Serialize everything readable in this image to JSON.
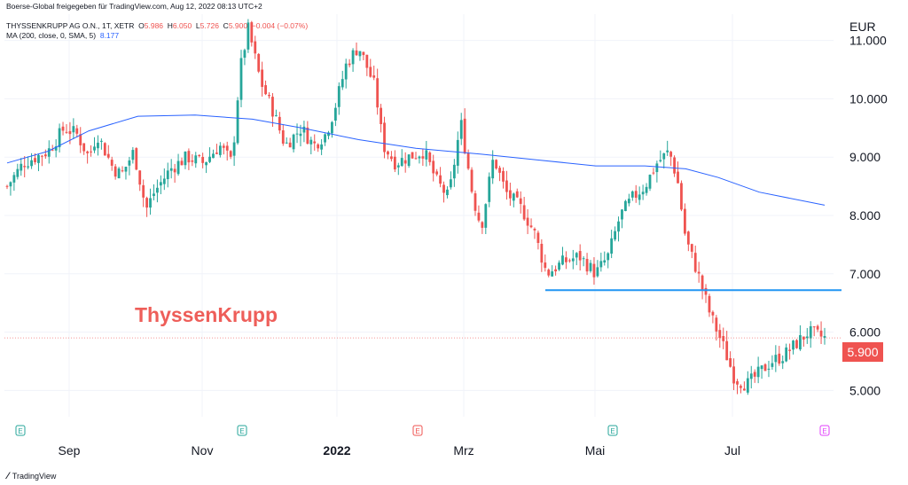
{
  "header": {
    "source": "Boerse-Global freigegeben für TradingView.com, Aug 12, 2022 08:13 UTC+2",
    "symbol": "THYSSENKRUPP AG O.N., 1T, XETR",
    "o_label": "O",
    "o_value": "5.986",
    "h_label": "H",
    "h_value": "6.050",
    "l_label": "L",
    "l_value": "5.726",
    "c_label": "C",
    "c_value": "5.900",
    "change": "−0.004 (−0.07%)",
    "indicator_label": "MA (200, close, 0, SMA, 5)",
    "indicator_value": "8.177"
  },
  "currency": "EUR",
  "watermark": "ThyssenKrupp",
  "last_price_label": "5.900",
  "footer_logo": "TradingView",
  "colors": {
    "up": "#26a69a",
    "down": "#ef5350",
    "ma": "#2962ff",
    "support": "#2196f3",
    "grid": "#f0f3fa"
  },
  "chart_data": {
    "type": "candlestick",
    "x_ticks": [
      "Sep",
      "Nov",
      "2022",
      "Mrz",
      "Mai",
      "Jul"
    ],
    "y_ticks": [
      "11.000",
      "10.000",
      "9.000",
      "8.000",
      "7.000",
      "6.000",
      "5.000"
    ],
    "y_tick_values": [
      11,
      10,
      9,
      8,
      7,
      6,
      5
    ],
    "ylim": [
      4.55,
      11.45
    ],
    "last_price": 5.9,
    "ohlc_series": [
      {
        "x": 0.0,
        "y": 8.5
      },
      {
        "x": 0.02,
        "y": 8.9
      },
      {
        "x": 0.05,
        "y": 9.1
      },
      {
        "x": 0.07,
        "y": 9.5
      },
      {
        "x": 0.085,
        "y": 9.4
      },
      {
        "x": 0.1,
        "y": 9.0
      },
      {
        "x": 0.11,
        "y": 9.4
      },
      {
        "x": 0.13,
        "y": 8.8
      },
      {
        "x": 0.14,
        "y": 8.7
      },
      {
        "x": 0.155,
        "y": 9.1
      },
      {
        "x": 0.17,
        "y": 8.1
      },
      {
        "x": 0.18,
        "y": 8.4
      },
      {
        "x": 0.2,
        "y": 8.8
      },
      {
        "x": 0.22,
        "y": 9.0
      },
      {
        "x": 0.24,
        "y": 8.9
      },
      {
        "x": 0.26,
        "y": 9.2
      },
      {
        "x": 0.275,
        "y": 8.9
      },
      {
        "x": 0.285,
        "y": 10.5
      },
      {
        "x": 0.295,
        "y": 11.2
      },
      {
        "x": 0.31,
        "y": 10.3
      },
      {
        "x": 0.325,
        "y": 9.8
      },
      {
        "x": 0.34,
        "y": 9.2
      },
      {
        "x": 0.36,
        "y": 9.5
      },
      {
        "x": 0.375,
        "y": 9.2
      },
      {
        "x": 0.39,
        "y": 9.4
      },
      {
        "x": 0.4,
        "y": 9.8
      },
      {
        "x": 0.415,
        "y": 10.6
      },
      {
        "x": 0.43,
        "y": 10.9
      },
      {
        "x": 0.45,
        "y": 10.2
      },
      {
        "x": 0.46,
        "y": 9.2
      },
      {
        "x": 0.475,
        "y": 8.9
      },
      {
        "x": 0.49,
        "y": 9.0
      },
      {
        "x": 0.51,
        "y": 9.1
      },
      {
        "x": 0.525,
        "y": 8.6
      },
      {
        "x": 0.54,
        "y": 8.3
      },
      {
        "x": 0.555,
        "y": 9.6
      },
      {
        "x": 0.57,
        "y": 8.3
      },
      {
        "x": 0.58,
        "y": 7.8
      },
      {
        "x": 0.595,
        "y": 9.0
      },
      {
        "x": 0.61,
        "y": 8.4
      },
      {
        "x": 0.63,
        "y": 8.1
      },
      {
        "x": 0.645,
        "y": 7.7
      },
      {
        "x": 0.66,
        "y": 7.0
      },
      {
        "x": 0.68,
        "y": 7.2
      },
      {
        "x": 0.7,
        "y": 7.3
      },
      {
        "x": 0.72,
        "y": 7.0
      },
      {
        "x": 0.735,
        "y": 7.3
      },
      {
        "x": 0.75,
        "y": 8.0
      },
      {
        "x": 0.765,
        "y": 8.3
      },
      {
        "x": 0.78,
        "y": 8.5
      },
      {
        "x": 0.795,
        "y": 8.9
      },
      {
        "x": 0.81,
        "y": 9.1
      },
      {
        "x": 0.82,
        "y": 8.6
      },
      {
        "x": 0.83,
        "y": 7.6
      },
      {
        "x": 0.845,
        "y": 7.0
      },
      {
        "x": 0.86,
        "y": 6.3
      },
      {
        "x": 0.875,
        "y": 5.8
      },
      {
        "x": 0.89,
        "y": 5.2
      },
      {
        "x": 0.905,
        "y": 5.1
      },
      {
        "x": 0.92,
        "y": 5.3
      },
      {
        "x": 0.935,
        "y": 5.5
      },
      {
        "x": 0.95,
        "y": 5.6
      },
      {
        "x": 0.965,
        "y": 5.8
      },
      {
        "x": 0.98,
        "y": 6.0
      },
      {
        "x": 1.0,
        "y": 5.9
      }
    ],
    "ma_series": [
      {
        "x": 0.0,
        "y": 8.9
      },
      {
        "x": 0.05,
        "y": 9.1
      },
      {
        "x": 0.1,
        "y": 9.45
      },
      {
        "x": 0.16,
        "y": 9.7
      },
      {
        "x": 0.23,
        "y": 9.72
      },
      {
        "x": 0.3,
        "y": 9.65
      },
      {
        "x": 0.36,
        "y": 9.5
      },
      {
        "x": 0.43,
        "y": 9.3
      },
      {
        "x": 0.5,
        "y": 9.15
      },
      {
        "x": 0.58,
        "y": 9.05
      },
      {
        "x": 0.65,
        "y": 8.95
      },
      {
        "x": 0.72,
        "y": 8.85
      },
      {
        "x": 0.78,
        "y": 8.85
      },
      {
        "x": 0.83,
        "y": 8.8
      },
      {
        "x": 0.87,
        "y": 8.65
      },
      {
        "x": 0.92,
        "y": 8.4
      },
      {
        "x": 1.0,
        "y": 8.177
      }
    ],
    "support_level": 6.72
  }
}
